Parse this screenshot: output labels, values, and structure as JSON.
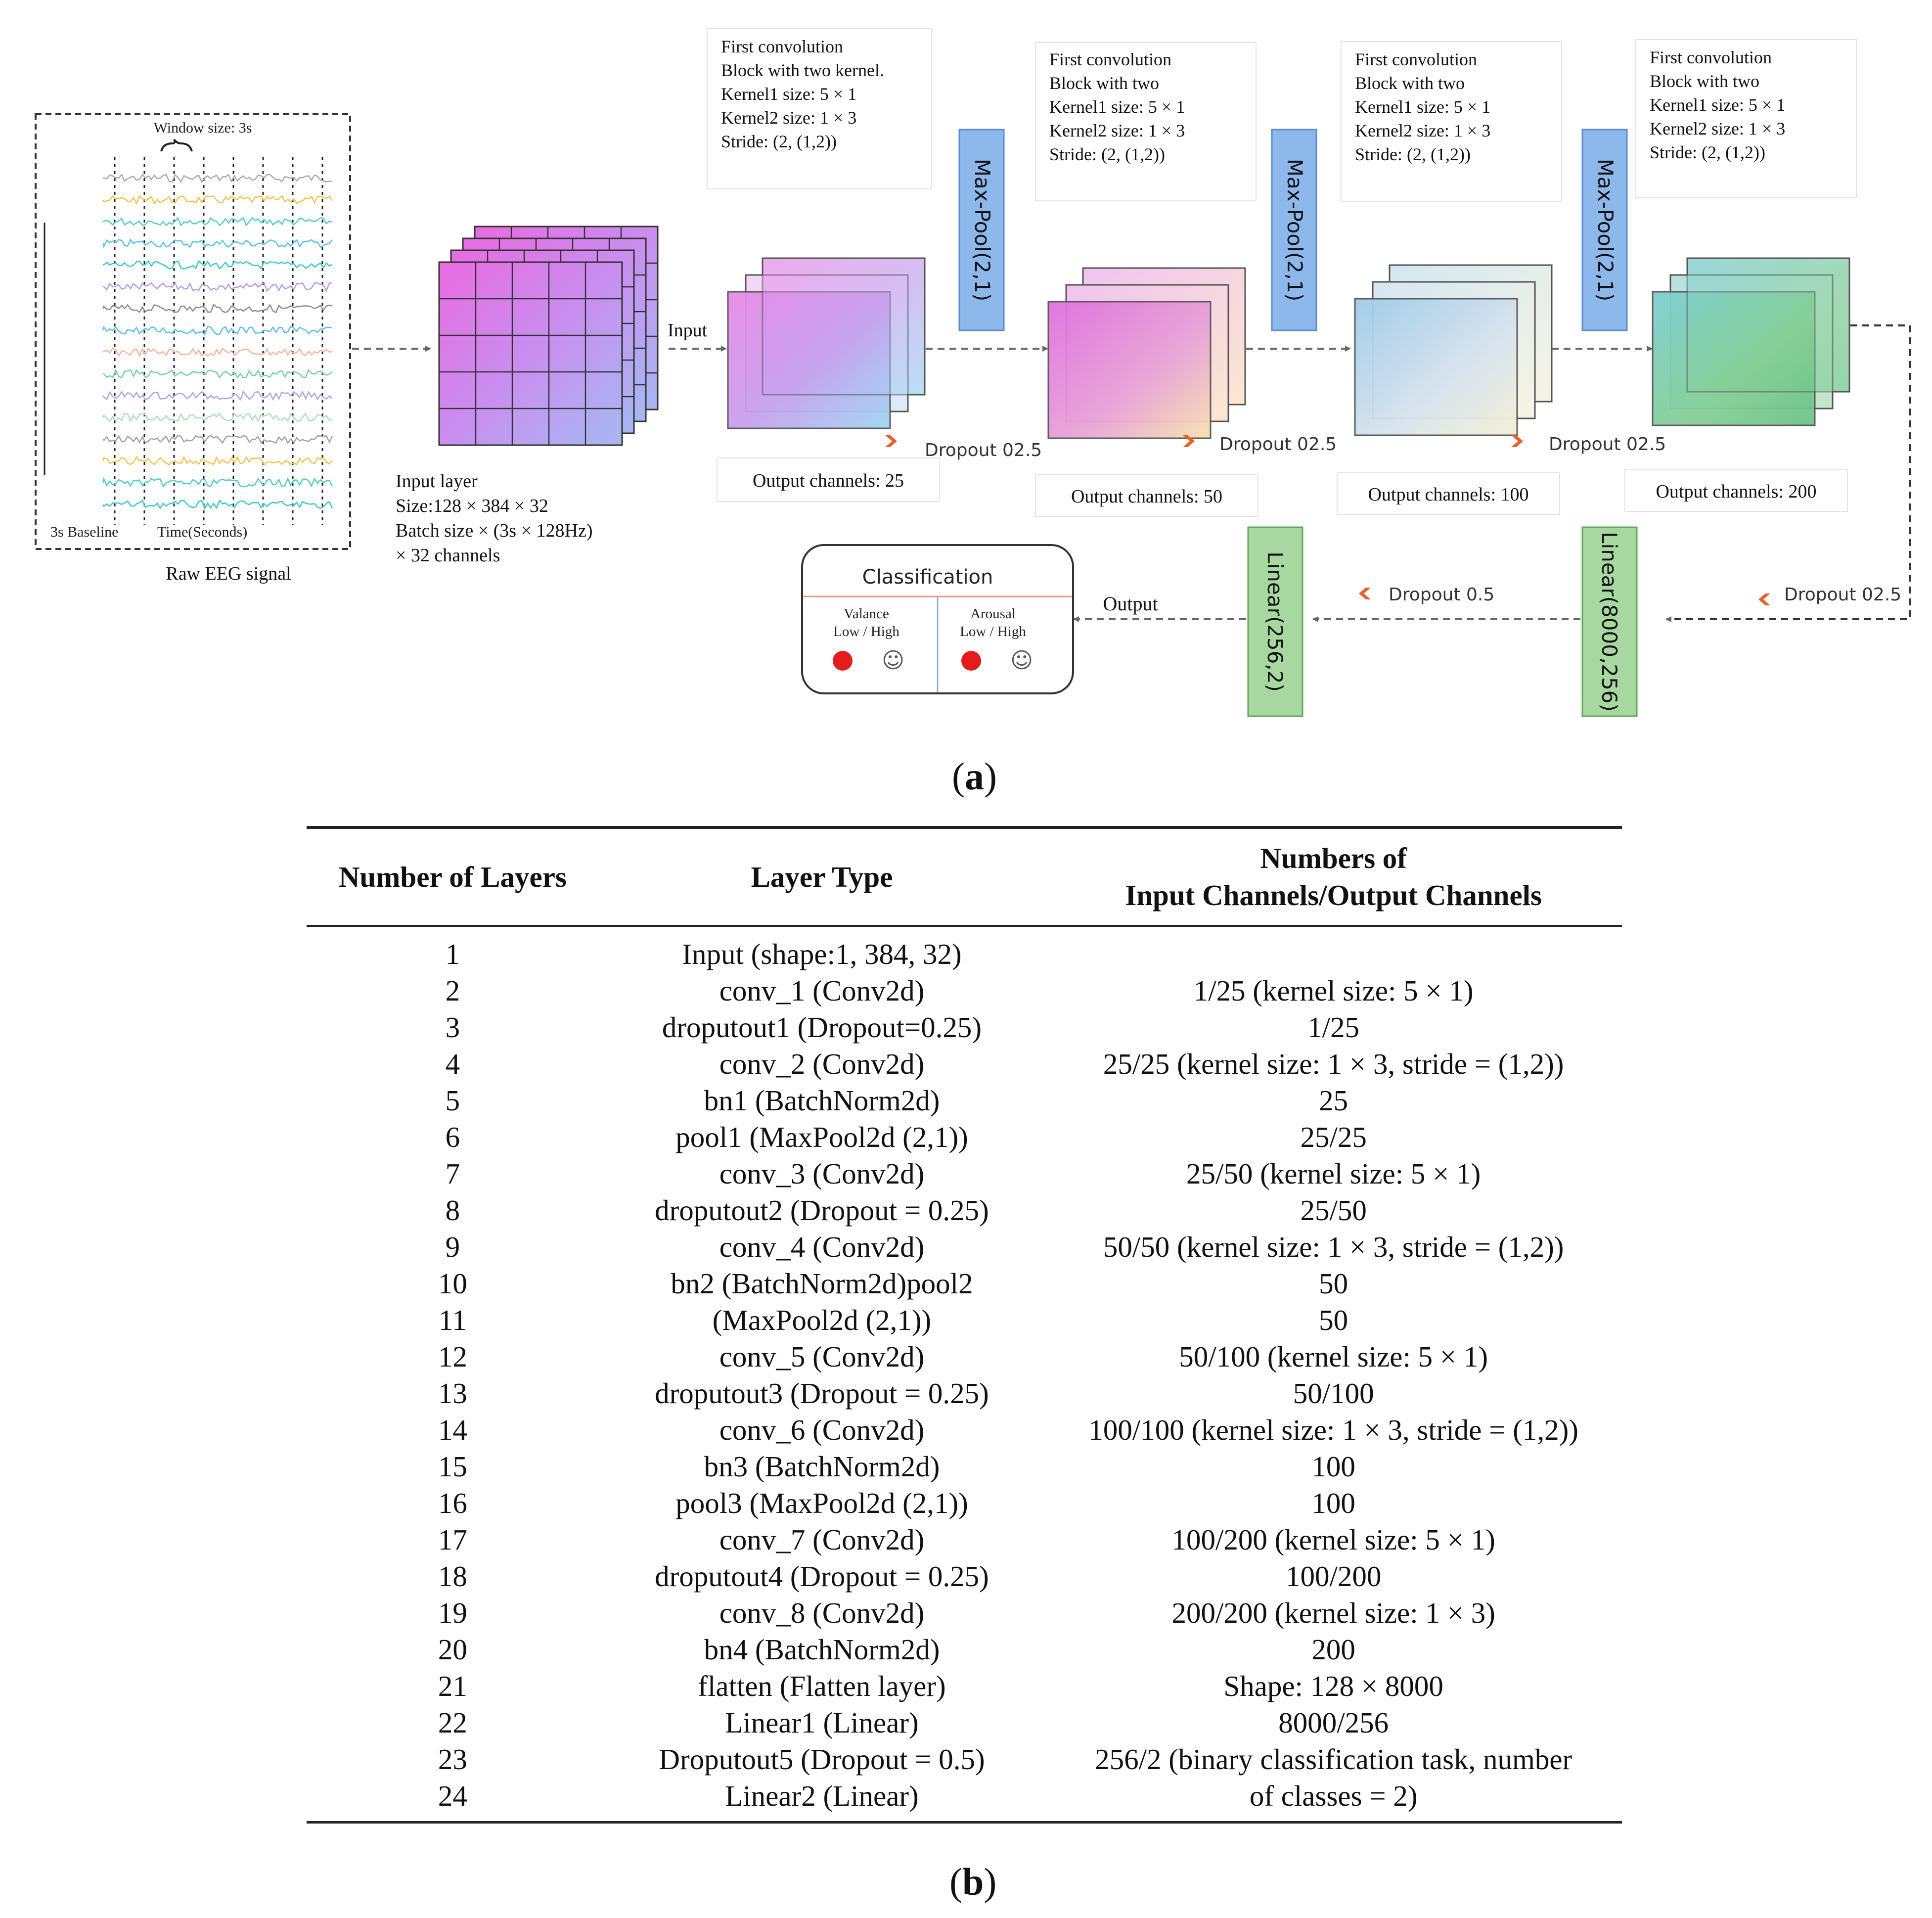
{
  "raw_eeg": {
    "window_label": "Window size: 3s",
    "baseline_label": "3s Baseline",
    "time_label": "Time(Seconds)",
    "title": "Raw EEG signal"
  },
  "input_layer": {
    "line1": "Input layer",
    "line2": "Size:128 × 384 × 32",
    "line3": "Batch size × (3s × 128Hz)",
    "line4": "× 32 channels"
  },
  "input_arrow_label": "Input",
  "conv_blocks": [
    {
      "title1": "First convolution",
      "title2": "Block with two kernel.",
      "k1": "Kernel1 size: 5 × 1",
      "k2": "Kernel2 size: 1 × 3",
      "stride": "Stride: (2, (1,2))",
      "output": "Output channels: 25",
      "dropout": "Dropout 02.5"
    },
    {
      "title1": "First convolution",
      "title2": "Block with two",
      "k1": "Kernel1 size: 5 × 1",
      "k2": "Kernel2 size: 1 × 3",
      "stride": "Stride: (2, (1,2))",
      "output": "Output channels: 50",
      "dropout": "Dropout 02.5"
    },
    {
      "title1": "First convolution",
      "title2": "Block with two",
      "k1": "Kernel1 size: 5 × 1",
      "k2": "Kernel2 size: 1 × 3",
      "stride": "Stride: (2, (1,2))",
      "output": "Output channels: 100",
      "dropout": "Dropout 02.5"
    },
    {
      "title1": "First convolution",
      "title2": "Block with two",
      "k1": "Kernel1 size: 5 × 1",
      "k2": "Kernel2 size: 1 × 3",
      "stride": "Stride: (2, (1,2))",
      "output": "Output channels: 200"
    }
  ],
  "maxpool_label": "Max-Pool(2,1)",
  "linear1_label": "Linear(8000,256)",
  "linear2_label": "Linear(256,2)",
  "dropout_right": "Dropout 02.5",
  "dropout_mid": "Dropout 0.5",
  "output_label": "Output",
  "classification": {
    "title": "Classification",
    "valance": "Valance",
    "arousal": "Arousal",
    "low_high": "Low / High",
    "smiley": "☺"
  },
  "caption_a": "a",
  "caption_b": "b",
  "table": {
    "headers": {
      "col1": "Number of Layers",
      "col2": "Layer Type",
      "col3_line1": "Numbers of",
      "col3_line2": "Input Channels/Output Channels"
    },
    "rows": [
      [
        "1",
        "Input (shape:1, 384, 32)",
        ""
      ],
      [
        "2",
        "conv_1 (Conv2d)",
        "1/25 (kernel size: 5 × 1)"
      ],
      [
        "3",
        "droputout1 (Dropout=0.25)",
        "1/25"
      ],
      [
        "4",
        "conv_2 (Conv2d)",
        "25/25 (kernel size: 1 × 3, stride = (1,2))"
      ],
      [
        "5",
        "bn1 (BatchNorm2d)",
        "25"
      ],
      [
        "6",
        "pool1 (MaxPool2d (2,1))",
        "25/25"
      ],
      [
        "7",
        "conv_3 (Conv2d)",
        "25/50 (kernel size: 5 × 1)"
      ],
      [
        "8",
        "droputout2 (Dropout = 0.25)",
        "25/50"
      ],
      [
        "9",
        "conv_4 (Conv2d)",
        "50/50 (kernel size: 1 × 3, stride = (1,2))"
      ],
      [
        "10",
        "bn2 (BatchNorm2d)pool2",
        "50"
      ],
      [
        "11",
        "(MaxPool2d (2,1))",
        "50"
      ],
      [
        "12",
        "conv_5 (Conv2d)",
        "50/100 (kernel size: 5 × 1)"
      ],
      [
        "13",
        "droputout3 (Dropout = 0.25)",
        "50/100"
      ],
      [
        "14",
        "conv_6 (Conv2d)",
        "100/100 (kernel size: 1 × 3, stride = (1,2))"
      ],
      [
        "15",
        "bn3 (BatchNorm2d)",
        "100"
      ],
      [
        "16",
        "pool3 (MaxPool2d (2,1))",
        "100"
      ],
      [
        "17",
        "conv_7 (Conv2d)",
        "100/200 (kernel size: 5 × 1)"
      ],
      [
        "18",
        "droputout4 (Dropout = 0.25)",
        "100/200"
      ],
      [
        "19",
        "conv_8 (Conv2d)",
        "200/200 (kernel size: 1 × 3)"
      ],
      [
        "20",
        "bn4 (BatchNorm2d)",
        "200"
      ],
      [
        "21",
        "flatten (Flatten layer)",
        "Shape: 128 × 8000"
      ],
      [
        "22",
        "Linear1 (Linear)",
        "8000/256"
      ],
      [
        "23",
        "Droputout5 (Dropout = 0.5)",
        "256/2 (binary classification task, number"
      ],
      [
        "24",
        "Linear2 (Linear)",
        "of classes = 2)"
      ]
    ]
  }
}
